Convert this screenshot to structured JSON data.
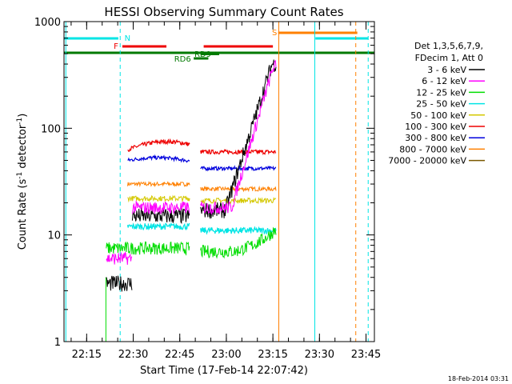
{
  "chart_data": {
    "type": "line",
    "title": "HESSI Observing Summary Count Rates",
    "xlabel": "Start Time (17-Feb-14 22:07:42)",
    "ylabel": "Count Rate (s",
    "ylabel_sup": "-1",
    "ylabel_mid": " detector",
    "ylabel_sup2": "-1",
    "ylabel_end": ")",
    "y_scale": "log",
    "ylim": [
      1,
      1000
    ],
    "xlim_minutes": [
      0,
      100
    ],
    "x_ticks": [
      {
        "label": "22:15",
        "minute": 7.3
      },
      {
        "label": "22:30",
        "minute": 22.3
      },
      {
        "label": "22:45",
        "minute": 37.3
      },
      {
        "label": "23:00",
        "minute": 52.3
      },
      {
        "label": "23:15",
        "minute": 67.3
      },
      {
        "label": "23:30",
        "minute": 82.3
      },
      {
        "label": "23:45",
        "minute": 97.3
      }
    ],
    "y_ticks": [
      {
        "label": "1",
        "value": 1
      },
      {
        "label": "10",
        "value": 10
      },
      {
        "label": "100",
        "value": 100
      },
      {
        "label": "1000",
        "value": 1000
      }
    ],
    "legend_header": [
      "Det 1,3,5,6,7,9,",
      "FDecim 1, Att 0"
    ],
    "legend_position": "right",
    "series": [
      {
        "name": "3 - 6 keV",
        "color": "#000000"
      },
      {
        "name": "6 - 12 keV",
        "color": "#ff00ff"
      },
      {
        "name": "12 - 25 keV",
        "color": "#00dd00"
      },
      {
        "name": "25 - 50 keV",
        "color": "#00e5e5"
      },
      {
        "name": "50 - 100 keV",
        "color": "#d4c800"
      },
      {
        "name": "100 - 300 keV",
        "color": "#ee0000"
      },
      {
        "name": "300 - 800 keV",
        "color": "#0000dd"
      },
      {
        "name": "800 - 7000 keV",
        "color": "#ff8000"
      },
      {
        "name": "7000 - 20000 keV",
        "color": "#7a5800"
      }
    ],
    "flag_labels": {
      "N": {
        "text": "N",
        "color": "#00e5e5"
      },
      "F": {
        "text": "F",
        "color": "#ee0000"
      },
      "S": {
        "text": "S",
        "color": "#ff8000"
      },
      "RD6": {
        "text": "RD6",
        "color": "#007a00"
      },
      "RD9": {
        "text": "RD9",
        "color": "#007a00"
      }
    },
    "timestamp": "18-Feb-2014 03:31"
  }
}
